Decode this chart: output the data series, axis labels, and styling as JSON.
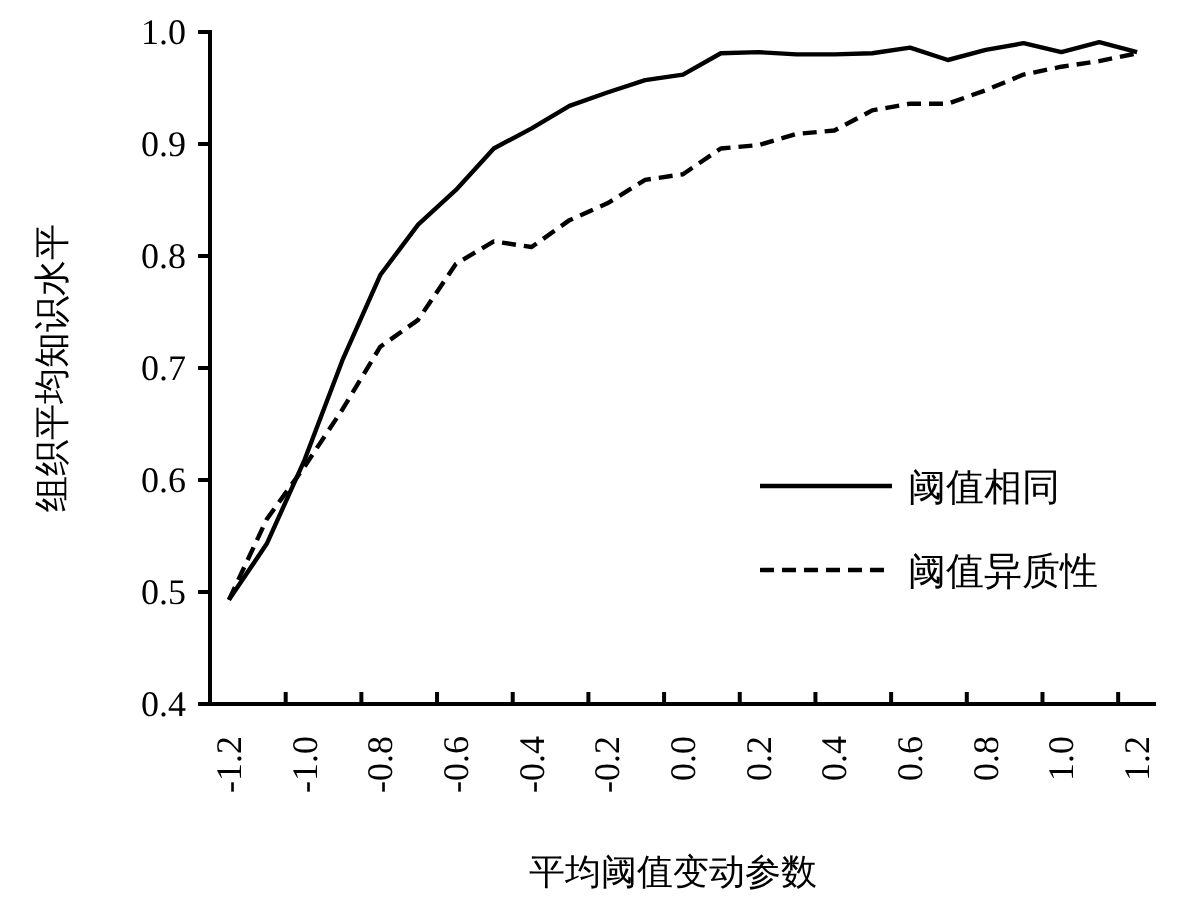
{
  "chart_data": {
    "type": "line",
    "xlabel": "平均阈值变动参数",
    "ylabel": "组织平均知识水平",
    "categories": [
      "-1.2",
      null,
      "-1.0",
      null,
      "-0.8",
      null,
      "-0.6",
      null,
      "-0.4",
      null,
      "-0.2",
      null,
      "0.0",
      null,
      "0.2",
      null,
      "0.4",
      null,
      "0.6",
      null,
      "0.8",
      null,
      "1.0",
      null,
      "1.2"
    ],
    "series": [
      {
        "name": "阈值相同",
        "color": "#000000",
        "line_style": "solid",
        "values": [
          0.493,
          0.543,
          0.618,
          0.707,
          0.783,
          0.828,
          0.859,
          0.896,
          0.914,
          0.934,
          0.946,
          0.957,
          0.962,
          0.981,
          0.982,
          0.98,
          0.98,
          0.981,
          0.986,
          0.975,
          0.984,
          0.99,
          0.982,
          0.991,
          0.982
        ]
      },
      {
        "name": "阈值异质性",
        "color": "#000000",
        "line_style": "dashed",
        "values": [
          0.493,
          0.565,
          0.612,
          0.663,
          0.719,
          0.743,
          0.793,
          0.813,
          0.808,
          0.832,
          0.847,
          0.868,
          0.873,
          0.896,
          0.899,
          0.909,
          0.912,
          0.93,
          0.936,
          0.936,
          0.948,
          0.962,
          0.969,
          0.974,
          0.981
        ]
      }
    ],
    "ylim": [
      0.4,
      1.0
    ],
    "yticks": [
      {
        "value": 0.4,
        "label": "0.4"
      },
      {
        "value": 0.5,
        "label": "0.5"
      },
      {
        "value": 0.6,
        "label": "0.6"
      },
      {
        "value": 0.7,
        "label": "0.7"
      },
      {
        "value": 0.8,
        "label": "0.8"
      },
      {
        "value": 0.9,
        "label": "0.9"
      },
      {
        "value": 1.0,
        "label": "1.0"
      }
    ],
    "legend": "bottom right"
  }
}
